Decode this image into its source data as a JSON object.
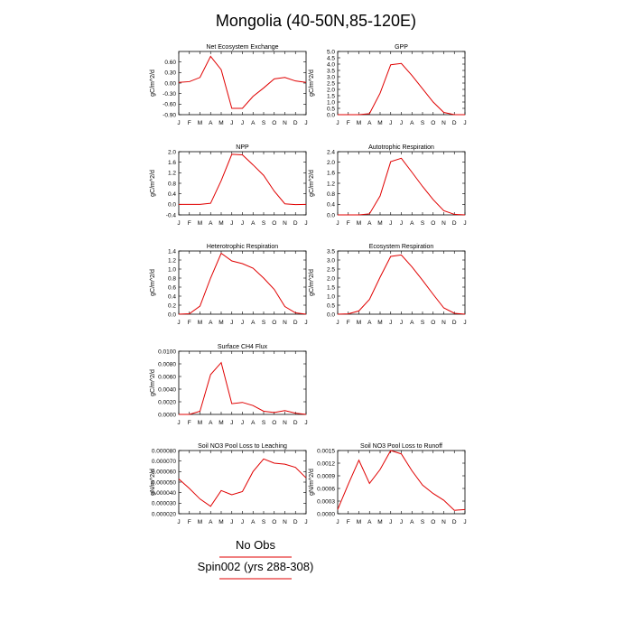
{
  "figure_title": "Mongolia (40-50N,85-120E)",
  "legend": {
    "entries": [
      {
        "label": "No Obs",
        "color": "#e00000"
      },
      {
        "label": "Spin002 (yrs 288-308)",
        "color": "#e00000"
      }
    ]
  },
  "chart_data": [
    {
      "type": "line",
      "title": "Net Ecosystem Exchange",
      "ylabel": "gC/m^2/d",
      "x": [
        "J",
        "F",
        "M",
        "A",
        "M",
        "J",
        "J",
        "A",
        "S",
        "O",
        "N",
        "D",
        "J"
      ],
      "ylim": [
        -0.9,
        0.9
      ],
      "yticks": [
        "-0.90",
        "-0.60",
        "-0.30",
        "0.00",
        "0.30",
        "0.60"
      ],
      "ytick_values": [
        -0.9,
        -0.6,
        -0.3,
        0.0,
        0.3,
        0.6
      ],
      "series": [
        {
          "color": "#e00000",
          "values": [
            0.02,
            0.04,
            0.16,
            0.76,
            0.38,
            -0.72,
            -0.72,
            -0.38,
            -0.14,
            0.12,
            0.16,
            0.06,
            0.02
          ]
        }
      ]
    },
    {
      "type": "line",
      "title": "GPP",
      "ylabel": "gC/m^2/d",
      "x": [
        "J",
        "F",
        "M",
        "A",
        "M",
        "J",
        "J",
        "A",
        "S",
        "O",
        "N",
        "D",
        "J"
      ],
      "ylim": [
        0,
        5
      ],
      "yticks": [
        "0.0",
        "0.5",
        "1.0",
        "1.5",
        "2.0",
        "2.5",
        "3.0",
        "3.5",
        "4.0",
        "4.5",
        "5.0"
      ],
      "ytick_values": [
        0,
        0.5,
        1,
        1.5,
        2,
        2.5,
        3,
        3.5,
        4,
        4.5,
        5
      ],
      "series": [
        {
          "color": "#e00000",
          "values": [
            0.0,
            0.0,
            0.0,
            0.08,
            1.7,
            3.95,
            4.05,
            3.1,
            2.05,
            1.0,
            0.18,
            0.0,
            0.0
          ]
        }
      ]
    },
    {
      "type": "line",
      "title": "NPP",
      "ylabel": "gC/m^2/d",
      "x": [
        "J",
        "F",
        "M",
        "A",
        "M",
        "J",
        "J",
        "A",
        "S",
        "O",
        "N",
        "D",
        "J"
      ],
      "ylim": [
        -0.4,
        2.0
      ],
      "yticks": [
        "-0.4",
        "0.0",
        "0.4",
        "0.8",
        "1.2",
        "1.6",
        "2.0"
      ],
      "ytick_values": [
        -0.4,
        0,
        0.4,
        0.8,
        1.2,
        1.6,
        2.0
      ],
      "series": [
        {
          "color": "#e00000",
          "values": [
            0.0,
            0.0,
            0.0,
            0.04,
            0.9,
            1.9,
            1.88,
            1.5,
            1.1,
            0.5,
            0.02,
            -0.01,
            0.0
          ]
        }
      ]
    },
    {
      "type": "line",
      "title": "Autotrophic Respiration",
      "ylabel": "gC/m^2/d",
      "x": [
        "J",
        "F",
        "M",
        "A",
        "M",
        "J",
        "J",
        "A",
        "S",
        "O",
        "N",
        "D",
        "J"
      ],
      "ylim": [
        0,
        2.4
      ],
      "yticks": [
        "0.0",
        "0.4",
        "0.8",
        "1.2",
        "1.6",
        "2.0",
        "2.4"
      ],
      "ytick_values": [
        0,
        0.4,
        0.8,
        1.2,
        1.6,
        2.0,
        2.4
      ],
      "series": [
        {
          "color": "#e00000",
          "values": [
            0.0,
            0.0,
            0.0,
            0.04,
            0.72,
            2.02,
            2.15,
            1.62,
            1.08,
            0.58,
            0.16,
            0.02,
            0.0
          ]
        }
      ]
    },
    {
      "type": "line",
      "title": "Heterotrophic Respiration",
      "ylabel": "gC/m^2/d",
      "x": [
        "J",
        "F",
        "M",
        "A",
        "M",
        "J",
        "J",
        "A",
        "S",
        "O",
        "N",
        "D",
        "J"
      ],
      "ylim": [
        0,
        1.4
      ],
      "yticks": [
        "0.0",
        "0.2",
        "0.4",
        "0.6",
        "0.8",
        "1.0",
        "1.2",
        "1.4"
      ],
      "ytick_values": [
        0,
        0.2,
        0.4,
        0.6,
        0.8,
        1.0,
        1.2,
        1.4
      ],
      "series": [
        {
          "color": "#e00000",
          "values": [
            0.0,
            0.01,
            0.18,
            0.8,
            1.35,
            1.18,
            1.12,
            1.02,
            0.8,
            0.55,
            0.17,
            0.03,
            0.0
          ]
        }
      ]
    },
    {
      "type": "line",
      "title": "Ecosystem Respiration",
      "ylabel": "gC/m^2/d",
      "x": [
        "J",
        "F",
        "M",
        "A",
        "M",
        "J",
        "J",
        "A",
        "S",
        "O",
        "N",
        "D",
        "J"
      ],
      "ylim": [
        0,
        3.5
      ],
      "yticks": [
        "0.0",
        "0.5",
        "1.0",
        "1.5",
        "2.0",
        "2.5",
        "3.0",
        "3.5"
      ],
      "ytick_values": [
        0,
        0.5,
        1,
        1.5,
        2,
        2.5,
        3,
        3.5
      ],
      "series": [
        {
          "color": "#e00000",
          "values": [
            0.0,
            0.02,
            0.18,
            0.82,
            2.05,
            3.2,
            3.28,
            2.62,
            1.88,
            1.1,
            0.35,
            0.05,
            0.0
          ]
        }
      ]
    },
    {
      "type": "line",
      "title": "Surface CH4 Flux",
      "ylabel": "gC/m^2/d",
      "x": [
        "J",
        "F",
        "M",
        "A",
        "M",
        "J",
        "J",
        "A",
        "S",
        "O",
        "N",
        "D",
        "J"
      ],
      "ylim": [
        0,
        0.01
      ],
      "yticks": [
        "0.0000",
        "0.0020",
        "0.0040",
        "0.0060",
        "0.0080",
        "0.0100"
      ],
      "ytick_values": [
        0,
        0.002,
        0.004,
        0.006,
        0.008,
        0.01
      ],
      "series": [
        {
          "color": "#e00000",
          "values": [
            0.0,
            0.0,
            0.0005,
            0.0063,
            0.0082,
            0.0017,
            0.0019,
            0.0014,
            0.0005,
            0.0003,
            0.0006,
            0.0002,
            0.0
          ]
        }
      ]
    },
    {
      "type": "line",
      "title": "Soil NO3 Pool Loss to Leaching",
      "ylabel": "gN/m^2/d",
      "x": [
        "J",
        "F",
        "M",
        "A",
        "M",
        "J",
        "J",
        "A",
        "S",
        "O",
        "N",
        "D",
        "J"
      ],
      "ylim": [
        2e-05,
        8e-05
      ],
      "yticks": [
        "0.000020",
        "0.000030",
        "0.000040",
        "0.000050",
        "0.000060",
        "0.000070",
        "0.000080"
      ],
      "ytick_values": [
        2e-05,
        3e-05,
        4e-05,
        5e-05,
        6e-05,
        7e-05,
        8e-05
      ],
      "series": [
        {
          "color": "#e00000",
          "values": [
            5.3e-05,
            4.4e-05,
            3.4e-05,
            2.7e-05,
            4.2e-05,
            3.8e-05,
            4.1e-05,
            6e-05,
            7.2e-05,
            6.8e-05,
            6.7e-05,
            6.4e-05,
            5.4e-05
          ]
        }
      ]
    },
    {
      "type": "line",
      "title": "Soil NO3 Pool Loss to Runoff",
      "ylabel": "gN/m^2/d",
      "x": [
        "J",
        "F",
        "M",
        "A",
        "M",
        "J",
        "J",
        "A",
        "S",
        "O",
        "N",
        "D",
        "J"
      ],
      "ylim": [
        0,
        0.0015
      ],
      "yticks": [
        "0.0000",
        "0.0003",
        "0.0006",
        "0.0009",
        "0.0012",
        "0.0015"
      ],
      "ytick_values": [
        0,
        0.0003,
        0.0006,
        0.0009,
        0.0012,
        0.0015
      ],
      "series": [
        {
          "color": "#e00000",
          "values": [
            0.0001,
            0.0007,
            0.00127,
            0.00072,
            0.00105,
            0.0015,
            0.00142,
            0.00102,
            0.00068,
            0.00048,
            0.00032,
            8e-05,
            0.0001
          ]
        }
      ]
    }
  ]
}
